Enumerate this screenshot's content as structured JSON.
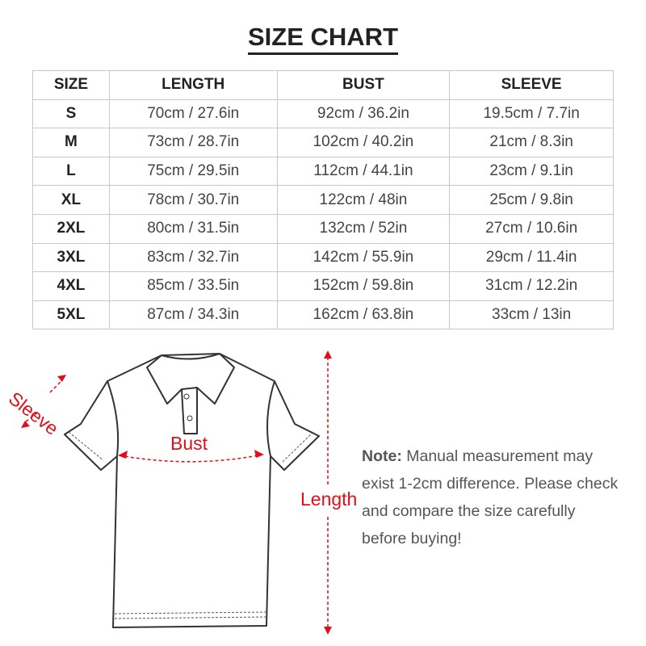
{
  "title": "SIZE CHART",
  "table": {
    "headers": [
      "SIZE",
      "LENGTH",
      "BUST",
      "SLEEVE"
    ],
    "rows": [
      [
        "S",
        "70cm / 27.6in",
        "92cm / 36.2in",
        "19.5cm / 7.7in"
      ],
      [
        "M",
        "73cm / 28.7in",
        "102cm / 40.2in",
        "21cm / 8.3in"
      ],
      [
        "L",
        "75cm / 29.5in",
        "112cm / 44.1in",
        "23cm / 9.1in"
      ],
      [
        "XL",
        "78cm / 30.7in",
        "122cm / 48in",
        "25cm / 9.8in"
      ],
      [
        "2XL",
        "80cm / 31.5in",
        "132cm / 52in",
        "27cm / 10.6in"
      ],
      [
        "3XL",
        "83cm / 32.7in",
        "142cm / 55.9in",
        "29cm / 11.4in"
      ],
      [
        "4XL",
        "85cm / 33.5in",
        "152cm / 59.8in",
        "31cm / 12.2in"
      ],
      [
        "5XL",
        "87cm / 34.3in",
        "162cm / 63.8in",
        "33cm / 13in"
      ]
    ]
  },
  "diagram": {
    "sleeve_label": "Sleeve",
    "bust_label": "Bust",
    "length_label": "Length",
    "accent_color": "#e0101a"
  },
  "note": {
    "label": "Note:",
    "text": " Manual measurement may exist 1-2cm difference. Please check and compare the size carefully before buying!"
  }
}
